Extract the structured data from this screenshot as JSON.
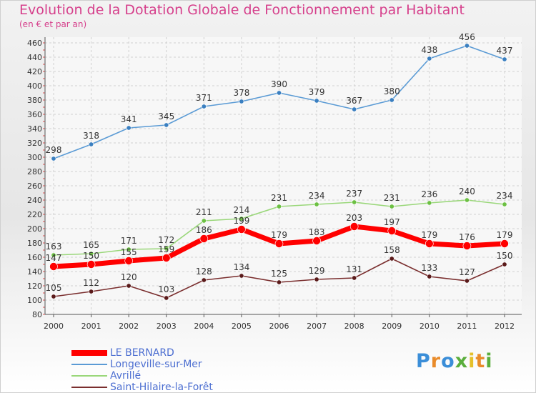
{
  "title": "Evolution de la Dotation Globale de Fonctionnement par Habitant",
  "subtitle": "(en € et par an)",
  "logo": {
    "text": "Proxiti"
  },
  "chart_data": {
    "type": "line",
    "x": [
      "2000",
      "2001",
      "2002",
      "2003",
      "2004",
      "2005",
      "2006",
      "2007",
      "2008",
      "2009",
      "2010",
      "2011",
      "2012"
    ],
    "ylim": [
      80,
      460
    ],
    "yticks": [
      80,
      100,
      120,
      140,
      160,
      180,
      200,
      220,
      240,
      260,
      280,
      300,
      320,
      340,
      360,
      380,
      400,
      420,
      440,
      460
    ],
    "grid": true,
    "legend_position": "bottom-left",
    "series": [
      {
        "name": "Longeville-sur-Mer",
        "color": "#5b9bd5",
        "marker": "#3a7fc0",
        "values": [
          298,
          318,
          341,
          345,
          371,
          378,
          390,
          379,
          367,
          380,
          438,
          456,
          437
        ]
      },
      {
        "name": "Avrillé",
        "color": "#9ad77a",
        "marker": "#6cc043",
        "values": [
          163,
          165,
          171,
          172,
          211,
          214,
          231,
          234,
          237,
          231,
          236,
          240,
          234
        ]
      },
      {
        "name": "LE BERNARD",
        "color": "#ff0000",
        "marker": "#ff0000",
        "values": [
          147,
          150,
          155,
          159,
          186,
          199,
          179,
          183,
          203,
          197,
          179,
          176,
          179
        ]
      },
      {
        "name": "Saint-Hilaire-la-Forêt",
        "color": "#7a2e2e",
        "marker": "#5a1a1a",
        "values": [
          105,
          112,
          120,
          103,
          128,
          134,
          125,
          129,
          131,
          158,
          133,
          127,
          150
        ]
      }
    ]
  }
}
